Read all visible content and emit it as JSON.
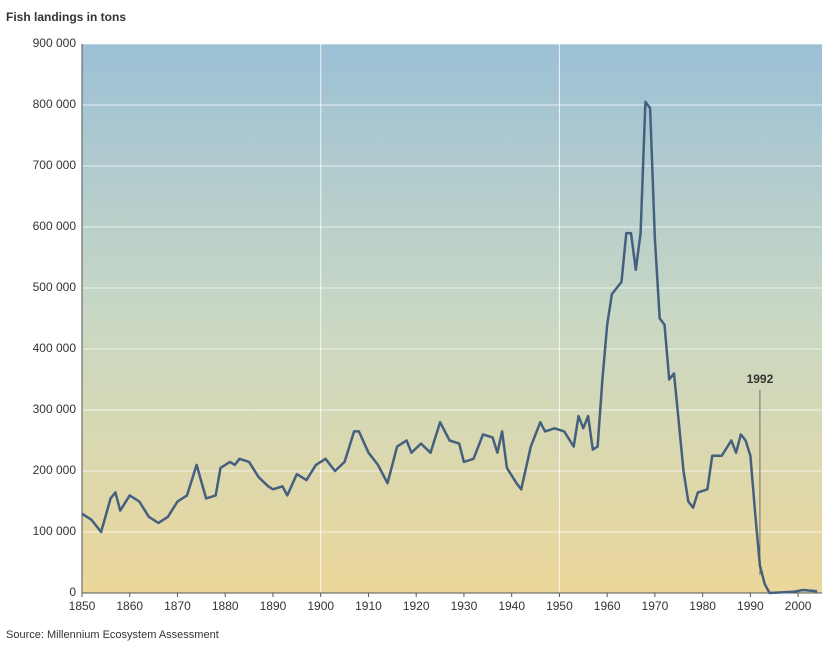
{
  "chart_data": {
    "type": "line",
    "title": "Fish landings in tons",
    "source": "Source: Millennium Ecosystem Assessment",
    "annotation": {
      "text": "1992",
      "x": 1992
    },
    "x": [
      1850,
      1852,
      1854,
      1856,
      1857,
      1858,
      1860,
      1862,
      1864,
      1866,
      1868,
      1870,
      1872,
      1874,
      1876,
      1878,
      1879,
      1881,
      1882,
      1883,
      1885,
      1887,
      1889,
      1890,
      1892,
      1893,
      1895,
      1897,
      1899,
      1901,
      1903,
      1905,
      1907,
      1908,
      1910,
      1912,
      1914,
      1916,
      1918,
      1919,
      1921,
      1923,
      1925,
      1927,
      1929,
      1930,
      1932,
      1934,
      1936,
      1937,
      1938,
      1939,
      1941,
      1942,
      1944,
      1946,
      1947,
      1949,
      1951,
      1953,
      1954,
      1955,
      1956,
      1957,
      1958,
      1959,
      1960,
      1961,
      1963,
      1964,
      1965,
      1966,
      1967,
      1968,
      1969,
      1970,
      1971,
      1972,
      1973,
      1974,
      1975,
      1976,
      1977,
      1978,
      1979,
      1981,
      1982,
      1984,
      1986,
      1987,
      1988,
      1989,
      1990,
      1991,
      1992,
      1993,
      1994,
      1999,
      2001,
      2004
    ],
    "series": [
      {
        "name": "Fish landings",
        "color": "#45607f",
        "values": [
          130000,
          120000,
          100000,
          155000,
          165000,
          135000,
          160000,
          150000,
          125000,
          115000,
          125000,
          150000,
          160000,
          210000,
          155000,
          160000,
          205000,
          215000,
          210000,
          220000,
          215000,
          190000,
          175000,
          170000,
          175000,
          160000,
          195000,
          185000,
          210000,
          220000,
          200000,
          215000,
          265000,
          265000,
          230000,
          210000,
          180000,
          240000,
          250000,
          230000,
          245000,
          230000,
          280000,
          250000,
          245000,
          215000,
          220000,
          260000,
          255000,
          230000,
          265000,
          205000,
          180000,
          170000,
          240000,
          280000,
          265000,
          270000,
          265000,
          240000,
          290000,
          270000,
          290000,
          235000,
          240000,
          350000,
          440000,
          490000,
          510000,
          590000,
          590000,
          530000,
          590000,
          805000,
          795000,
          580000,
          450000,
          440000,
          350000,
          360000,
          280000,
          200000,
          150000,
          140000,
          165000,
          170000,
          225000,
          225000,
          250000,
          230000,
          260000,
          250000,
          225000,
          130000,
          45000,
          15000,
          0,
          2000,
          5000,
          3000
        ]
      }
    ],
    "xlim": [
      1850,
      2005
    ],
    "xticks": [
      1850,
      1860,
      1870,
      1880,
      1890,
      1900,
      1910,
      1920,
      1930,
      1940,
      1950,
      1960,
      1970,
      1980,
      1990,
      2000
    ],
    "x_grid_lines": [
      1900,
      1950
    ],
    "ylim": [
      0,
      900000
    ],
    "yticks": [
      0,
      {
        "value": 100000,
        "label": "100 000"
      },
      {
        "value": 200000,
        "label": "200 000"
      },
      {
        "value": 300000,
        "label": "300 000"
      },
      {
        "value": 400000,
        "label": "400 000"
      },
      {
        "value": 500000,
        "label": "500 000"
      },
      {
        "value": 600000,
        "label": "600 000"
      },
      {
        "value": 700000,
        "label": "700 000"
      },
      {
        "value": 800000,
        "label": "800 000"
      },
      {
        "value": 900000,
        "label": "900 000"
      }
    ],
    "grid": true
  }
}
